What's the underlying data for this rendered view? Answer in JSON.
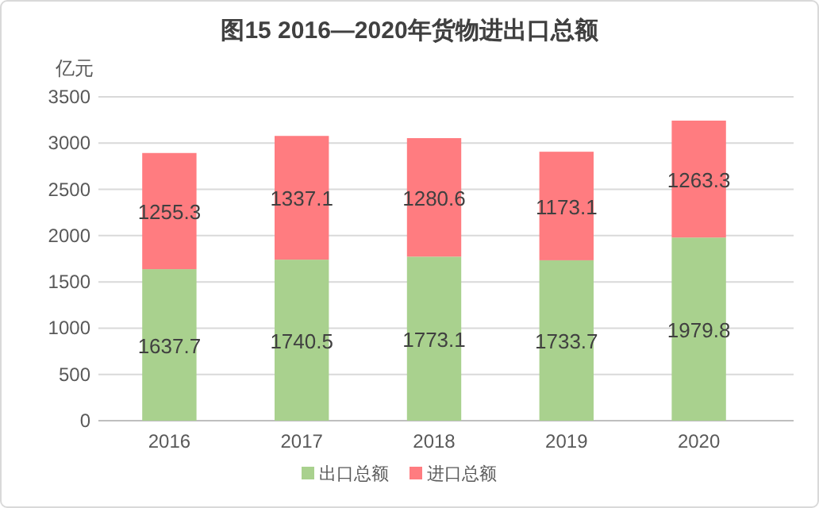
{
  "chart_data": {
    "type": "bar",
    "title": "图15 2016—2020年货物进出口总额",
    "ylabel": "亿元",
    "categories": [
      "2016",
      "2017",
      "2018",
      "2019",
      "2020"
    ],
    "stacked": true,
    "series": [
      {
        "name": "出口总额",
        "color": "#a9d18e",
        "values": [
          1637.7,
          1740.5,
          1773.1,
          1733.7,
          1979.8
        ]
      },
      {
        "name": "进口总额",
        "color": "#ff7c80",
        "values": [
          1255.3,
          1337.1,
          1280.6,
          1173.1,
          1263.3
        ]
      }
    ],
    "ylim": [
      0,
      3500
    ],
    "yticks": [
      0,
      500,
      1000,
      1500,
      2000,
      2500,
      3000,
      3500
    ],
    "grid": "y",
    "legend": "bottom",
    "data_labels": true
  }
}
